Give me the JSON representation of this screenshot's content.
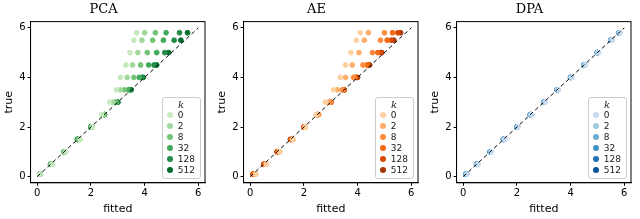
{
  "chart_data": [
    {
      "type": "scatter",
      "title": "PCA",
      "x_label": "fitted",
      "y_label": "true",
      "legend_title": "k",
      "legend": "lower right",
      "grid": false,
      "xlim": [
        -0.25,
        6.25
      ],
      "ylim": [
        -0.25,
        6.25
      ],
      "xticks": [
        0,
        2,
        4,
        6
      ],
      "yticks": [
        0,
        2,
        4,
        6
      ],
      "series": [
        {
          "name": "0",
          "color": "#c7e9c0",
          "x": [
            0.1,
            0.55,
            1.05,
            1.6,
            2.05,
            2.4,
            2.7,
            2.95,
            3.1,
            3.3,
            3.45,
            3.6,
            3.7
          ],
          "values": [
            0.1,
            0.5,
            1,
            1.5,
            2,
            2.5,
            3,
            3.5,
            4,
            4.5,
            5,
            5.5,
            5.8
          ]
        },
        {
          "name": "2",
          "color": "#a1d99b",
          "x": [
            0.1,
            0.55,
            1.05,
            1.6,
            2.05,
            2.45,
            2.8,
            3.1,
            3.35,
            3.55,
            3.75,
            3.9,
            4.0
          ],
          "values": [
            0.1,
            0.5,
            1,
            1.5,
            2,
            2.5,
            3,
            3.5,
            4,
            4.5,
            5,
            5.5,
            5.8
          ]
        },
        {
          "name": "8",
          "color": "#74c476",
          "x": [
            0.1,
            0.5,
            1.0,
            1.55,
            2.05,
            2.5,
            2.9,
            3.25,
            3.6,
            3.85,
            4.1,
            4.3,
            4.4
          ],
          "values": [
            0.1,
            0.5,
            1,
            1.5,
            2,
            2.5,
            3,
            3.5,
            4,
            4.5,
            5,
            5.5,
            5.8
          ]
        },
        {
          "name": "32",
          "color": "#41ab5d",
          "x": [
            0.1,
            0.5,
            1.0,
            1.5,
            2.0,
            2.5,
            2.95,
            3.4,
            3.8,
            4.15,
            4.45,
            4.7,
            4.8
          ],
          "values": [
            0.1,
            0.5,
            1,
            1.5,
            2,
            2.5,
            3,
            3.5,
            4,
            4.5,
            5,
            5.5,
            5.8
          ]
        },
        {
          "name": "128",
          "color": "#238b45",
          "x": [
            0.1,
            0.5,
            1.0,
            1.5,
            2.0,
            2.5,
            3.0,
            3.45,
            3.9,
            4.35,
            4.75,
            5.1,
            5.3
          ],
          "values": [
            0.1,
            0.5,
            1,
            1.5,
            2,
            2.5,
            3,
            3.5,
            4,
            4.5,
            5,
            5.5,
            5.8
          ]
        },
        {
          "name": "512",
          "color": "#006d2c",
          "x": [
            0.1,
            0.5,
            1.0,
            1.5,
            2.0,
            2.5,
            3.0,
            3.5,
            3.95,
            4.45,
            4.9,
            5.35,
            5.6
          ],
          "values": [
            0.1,
            0.5,
            1,
            1.5,
            2,
            2.5,
            3,
            3.5,
            4,
            4.5,
            5,
            5.5,
            5.8
          ]
        },
        {
          "type": "line",
          "line_style": "dashed",
          "color": "#000000",
          "x": [
            0,
            6
          ],
          "values": [
            0,
            6
          ]
        }
      ]
    },
    {
      "type": "scatter",
      "title": "AE",
      "x_label": "fitted",
      "y_label": "true",
      "legend_title": "k",
      "legend": "lower right",
      "grid": false,
      "xlim": [
        -0.25,
        6.25
      ],
      "ylim": [
        -0.25,
        6.25
      ],
      "xticks": [
        0,
        2,
        4,
        6
      ],
      "yticks": [
        0,
        2,
        4,
        6
      ],
      "series": [
        {
          "name": "0",
          "color": "#fdd0a2",
          "x": [
            0.2,
            0.6,
            1.1,
            1.6,
            2.05,
            2.45,
            2.8,
            3.1,
            3.35,
            3.55,
            3.75,
            3.95,
            4.1
          ],
          "values": [
            0.1,
            0.5,
            1,
            1.5,
            2,
            2.5,
            3,
            3.5,
            4,
            4.5,
            5,
            5.5,
            5.8
          ]
        },
        {
          "name": "2",
          "color": "#fdae6b",
          "x": [
            0.2,
            0.6,
            1.1,
            1.6,
            2.05,
            2.5,
            2.9,
            3.25,
            3.55,
            3.8,
            4.05,
            4.25,
            4.4
          ],
          "values": [
            0.1,
            0.5,
            1,
            1.5,
            2,
            2.5,
            3,
            3.5,
            4,
            4.5,
            5,
            5.5,
            5.8
          ]
        },
        {
          "name": "8",
          "color": "#fd8d3c",
          "x": [
            0.15,
            0.55,
            1.05,
            1.55,
            2.05,
            2.55,
            3.0,
            3.45,
            3.85,
            4.2,
            4.55,
            4.85,
            5.0
          ],
          "values": [
            0.1,
            0.5,
            1,
            1.5,
            2,
            2.5,
            3,
            3.5,
            4,
            4.5,
            5,
            5.5,
            5.8
          ]
        },
        {
          "name": "32",
          "color": "#f16913",
          "x": [
            0.15,
            0.55,
            1.05,
            1.55,
            2.0,
            2.5,
            3.0,
            3.45,
            3.9,
            4.35,
            4.75,
            5.1,
            5.3
          ],
          "values": [
            0.1,
            0.5,
            1,
            1.5,
            2,
            2.5,
            3,
            3.5,
            4,
            4.5,
            5,
            5.5,
            5.8
          ]
        },
        {
          "name": "128",
          "color": "#d94801",
          "x": [
            0.1,
            0.5,
            1.0,
            1.5,
            2.0,
            2.5,
            3.0,
            3.5,
            3.95,
            4.4,
            4.85,
            5.25,
            5.5
          ],
          "values": [
            0.1,
            0.5,
            1,
            1.5,
            2,
            2.5,
            3,
            3.5,
            4,
            4.5,
            5,
            5.5,
            5.8
          ]
        },
        {
          "name": "512",
          "color": "#a63603",
          "x": [
            0.1,
            0.5,
            1.0,
            1.5,
            2.0,
            2.5,
            3.0,
            3.5,
            4.0,
            4.45,
            4.9,
            5.35,
            5.6
          ],
          "values": [
            0.1,
            0.5,
            1,
            1.5,
            2,
            2.5,
            3,
            3.5,
            4,
            4.5,
            5,
            5.5,
            5.8
          ]
        },
        {
          "type": "line",
          "line_style": "dashed",
          "color": "#000000",
          "x": [
            0,
            6
          ],
          "values": [
            0,
            6
          ]
        }
      ]
    },
    {
      "type": "scatter",
      "title": "DPA",
      "x_label": "fitted",
      "y_label": "true",
      "legend_title": "k",
      "legend": "lower right",
      "grid": false,
      "xlim": [
        -0.25,
        6.25
      ],
      "ylim": [
        -0.25,
        6.25
      ],
      "xticks": [
        0,
        2,
        4,
        6
      ],
      "yticks": [
        0,
        2,
        4,
        6
      ],
      "series": [
        {
          "name": "0",
          "color": "#c6dbef",
          "x": [
            0.15,
            0.55,
            1.05,
            1.55,
            2.05,
            2.55,
            3.05,
            3.55,
            4.05,
            4.55,
            5.05,
            5.55,
            5.85
          ],
          "values": [
            0.1,
            0.5,
            1,
            1.5,
            2,
            2.5,
            3,
            3.5,
            4,
            4.5,
            5,
            5.5,
            5.8
          ]
        },
        {
          "name": "2",
          "color": "#9ecae1",
          "x": [
            0.12,
            0.52,
            1.02,
            1.52,
            2.02,
            2.52,
            3.02,
            3.52,
            4.02,
            4.52,
            5.02,
            5.52,
            5.82
          ],
          "values": [
            0.1,
            0.5,
            1,
            1.5,
            2,
            2.5,
            3,
            3.5,
            4,
            4.5,
            5,
            5.5,
            5.8
          ]
        },
        {
          "name": "8",
          "color": "#6baed6",
          "x": [
            0.1,
            0.5,
            1.0,
            1.5,
            2.0,
            2.5,
            3.0,
            3.5,
            4.0,
            4.5,
            5.0,
            5.5,
            5.8
          ],
          "values": [
            0.1,
            0.5,
            1,
            1.5,
            2,
            2.5,
            3,
            3.5,
            4,
            4.5,
            5,
            5.5,
            5.8
          ]
        },
        {
          "name": "32",
          "color": "#4292c6",
          "x": [
            0.1,
            0.5,
            1.0,
            1.5,
            2.0,
            2.5,
            3.0,
            3.5,
            4.0,
            4.5,
            5.0,
            5.5,
            5.8
          ],
          "values": [
            0.1,
            0.5,
            1,
            1.5,
            2,
            2.5,
            3,
            3.5,
            4,
            4.5,
            5,
            5.5,
            5.8
          ]
        },
        {
          "name": "128",
          "color": "#2171b5",
          "x": [
            0.1,
            0.5,
            1.0,
            1.5,
            2.0,
            2.5,
            3.0,
            3.5,
            4.0,
            4.5,
            5.0,
            5.5,
            5.8
          ],
          "values": [
            0.1,
            0.5,
            1,
            1.5,
            2,
            2.5,
            3,
            3.5,
            4,
            4.5,
            5,
            5.5,
            5.8
          ]
        },
        {
          "name": "512",
          "color": "#08519c",
          "x": [
            0.1,
            0.5,
            1.0,
            1.5,
            2.0,
            2.5,
            3.0,
            3.5,
            4.0,
            4.5,
            5.0,
            5.5,
            5.8
          ],
          "values": [
            0.1,
            0.5,
            1,
            1.5,
            2,
            2.5,
            3,
            3.5,
            4,
            4.5,
            5,
            5.5,
            5.8
          ]
        },
        {
          "type": "line",
          "line_style": "dashed",
          "color": "#000000",
          "x": [
            0,
            6
          ],
          "values": [
            0,
            6
          ]
        }
      ]
    }
  ]
}
